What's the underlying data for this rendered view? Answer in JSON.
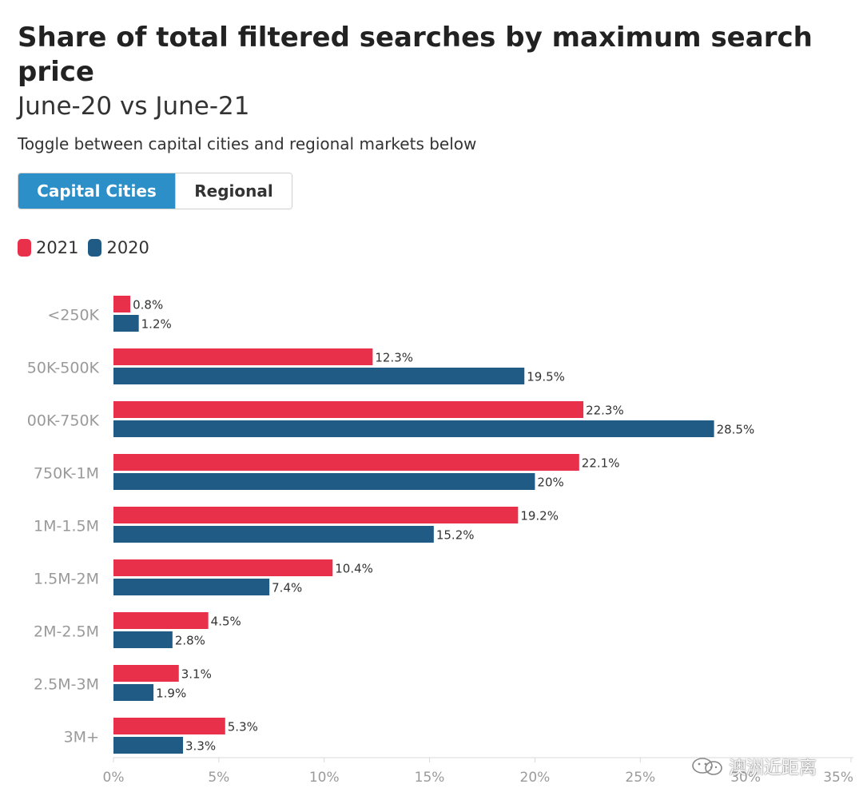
{
  "header": {
    "title": "Share of total filtered searches by maximum search price",
    "subtitle": "June-20 vs June-21",
    "instruction": "Toggle between capital cities and regional markets below"
  },
  "toggle": {
    "options": [
      {
        "label": "Capital Cities",
        "active": true
      },
      {
        "label": "Regional",
        "active": false
      }
    ]
  },
  "legend": [
    {
      "label": "2021",
      "color": "#e8304a"
    },
    {
      "label": "2020",
      "color": "#1f5b85"
    }
  ],
  "chart_data": {
    "type": "bar",
    "orientation": "horizontal",
    "categories": [
      "<250K",
      "50K-500K",
      "00K-750K",
      "750K-1M",
      "1M-1.5M",
      "1.5M-2M",
      "2M-2.5M",
      "2.5M-3M",
      "3M+"
    ],
    "series": [
      {
        "name": "2021",
        "color": "#e8304a",
        "values": [
          0.8,
          12.3,
          22.3,
          22.1,
          19.2,
          10.4,
          4.5,
          3.1,
          5.3
        ],
        "labels": [
          "0.8%",
          "12.3%",
          "22.3%",
          "22.1%",
          "19.2%",
          "10.4%",
          "4.5%",
          "3.1%",
          "5.3%"
        ]
      },
      {
        "name": "2020",
        "color": "#1f5b85",
        "values": [
          1.2,
          19.5,
          28.5,
          20,
          15.2,
          7.4,
          2.8,
          1.9,
          3.3
        ],
        "labels": [
          "1.2%",
          "19.5%",
          "28.5%",
          "20%",
          "15.2%",
          "7.4%",
          "2.8%",
          "1.9%",
          "3.3%"
        ]
      }
    ],
    "xlim": [
      0,
      35
    ],
    "xticks": [
      0,
      5,
      10,
      15,
      20,
      25,
      30,
      35
    ],
    "xtick_labels": [
      "0%",
      "5%",
      "10%",
      "15%",
      "20%",
      "25%",
      "30%",
      "35%"
    ],
    "legend_position": "top-left",
    "grid": false
  },
  "watermark": {
    "text": "澳洲近距离",
    "icon": "wechat-icon"
  }
}
